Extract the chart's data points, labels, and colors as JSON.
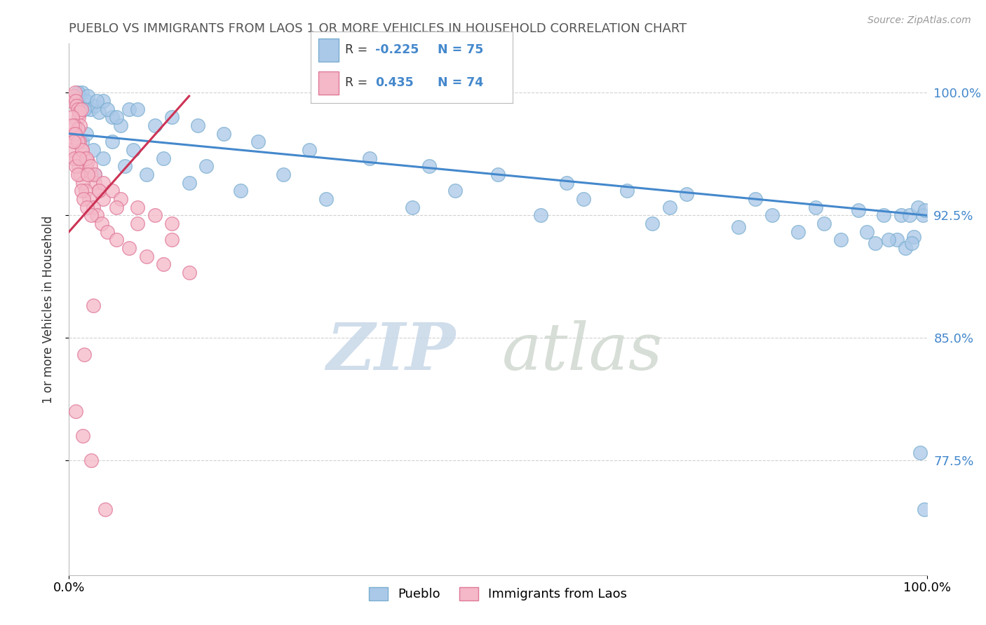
{
  "title": "PUEBLO VS IMMIGRANTS FROM LAOS 1 OR MORE VEHICLES IN HOUSEHOLD CORRELATION CHART",
  "source": "Source: ZipAtlas.com",
  "ylabel": "1 or more Vehicles in Household",
  "xlim": [
    0.0,
    100.0
  ],
  "ylim": [
    70.5,
    103.0
  ],
  "yticks_right": [
    77.5,
    85.0,
    92.5,
    100.0
  ],
  "pueblo_color": "#aac8e8",
  "laos_color": "#f4b8c8",
  "pueblo_edge": "#7aaed0",
  "laos_edge": "#e07898",
  "trendline_blue": "#4488cc",
  "trendline_pink": "#cc3355",
  "background_color": "#ffffff",
  "grid_color": "#cccccc",
  "title_color": "#555555",
  "figsize": [
    14.06,
    8.92
  ],
  "dpi": 100,
  "pueblo_x": [
    1.2,
    1.5,
    2.0,
    2.5,
    3.0,
    3.5,
    4.0,
    5.0,
    6.0,
    7.0,
    1.0,
    1.8,
    2.2,
    3.2,
    4.5,
    5.5,
    8.0,
    10.0,
    12.0,
    15.0,
    18.0,
    22.0,
    28.0,
    35.0,
    42.0,
    50.0,
    58.0,
    65.0,
    72.0,
    80.0,
    87.0,
    92.0,
    95.0,
    97.0,
    98.0,
    99.0,
    99.5,
    99.8,
    1.5,
    2.8,
    4.0,
    6.5,
    9.0,
    14.0,
    20.0,
    30.0,
    40.0,
    55.0,
    68.0,
    78.0,
    85.0,
    90.0,
    94.0,
    96.5,
    97.5,
    98.5,
    3.0,
    2.0,
    5.0,
    7.5,
    11.0,
    16.0,
    25.0,
    45.0,
    60.0,
    70.0,
    82.0,
    88.0,
    93.0,
    95.5,
    98.2,
    99.2,
    99.7
  ],
  "pueblo_y": [
    99.8,
    100.0,
    99.5,
    99.0,
    99.2,
    98.8,
    99.5,
    98.5,
    98.0,
    99.0,
    100.0,
    99.0,
    99.8,
    99.5,
    99.0,
    98.5,
    99.0,
    98.0,
    98.5,
    98.0,
    97.5,
    97.0,
    96.5,
    96.0,
    95.5,
    95.0,
    94.5,
    94.0,
    93.8,
    93.5,
    93.0,
    92.8,
    92.5,
    92.5,
    92.5,
    93.0,
    92.5,
    92.8,
    97.0,
    96.5,
    96.0,
    95.5,
    95.0,
    94.5,
    94.0,
    93.5,
    93.0,
    92.5,
    92.0,
    91.8,
    91.5,
    91.0,
    90.8,
    91.0,
    90.5,
    91.2,
    95.0,
    97.5,
    97.0,
    96.5,
    96.0,
    95.5,
    95.0,
    94.0,
    93.5,
    93.0,
    92.5,
    92.0,
    91.5,
    91.0,
    90.8,
    78.0,
    74.5
  ],
  "laos_x": [
    0.3,
    0.5,
    0.7,
    0.8,
    0.9,
    1.0,
    1.1,
    1.2,
    1.3,
    1.4,
    0.4,
    0.6,
    0.8,
    1.0,
    1.2,
    1.5,
    1.8,
    2.0,
    2.2,
    2.5,
    3.0,
    3.5,
    4.0,
    0.5,
    0.7,
    0.9,
    1.1,
    1.3,
    1.6,
    1.9,
    2.3,
    2.8,
    3.2,
    0.3,
    0.6,
    0.8,
    1.0,
    1.4,
    1.7,
    2.1,
    2.6,
    3.8,
    4.5,
    5.5,
    7.0,
    9.0,
    11.0,
    14.0,
    0.4,
    0.7,
    1.0,
    1.5,
    2.0,
    2.5,
    3.0,
    4.0,
    5.0,
    6.0,
    8.0,
    10.0,
    12.0,
    0.5,
    1.2,
    2.2,
    3.5,
    5.5,
    8.0,
    12.0,
    2.8,
    1.8,
    0.8,
    1.6,
    2.6,
    4.2
  ],
  "laos_y": [
    99.5,
    99.8,
    100.0,
    99.5,
    99.2,
    99.0,
    98.5,
    98.8,
    98.0,
    99.0,
    98.5,
    98.0,
    97.5,
    97.8,
    97.0,
    96.5,
    96.0,
    95.5,
    95.8,
    95.0,
    94.5,
    94.0,
    93.5,
    97.5,
    97.0,
    96.0,
    95.5,
    95.0,
    94.5,
    94.0,
    93.5,
    93.0,
    92.5,
    96.5,
    96.0,
    95.5,
    95.0,
    94.0,
    93.5,
    93.0,
    92.5,
    92.0,
    91.5,
    91.0,
    90.5,
    90.0,
    89.5,
    89.0,
    98.0,
    97.5,
    97.0,
    96.5,
    96.0,
    95.5,
    95.0,
    94.5,
    94.0,
    93.5,
    93.0,
    92.5,
    92.0,
    97.0,
    96.0,
    95.0,
    94.0,
    93.0,
    92.0,
    91.0,
    87.0,
    84.0,
    80.5,
    79.0,
    77.5,
    74.5
  ],
  "blue_trend_x": [
    0,
    100
  ],
  "blue_trend_y": [
    97.5,
    92.5
  ],
  "pink_trend_x": [
    0,
    14
  ],
  "pink_trend_y": [
    91.5,
    99.8
  ]
}
